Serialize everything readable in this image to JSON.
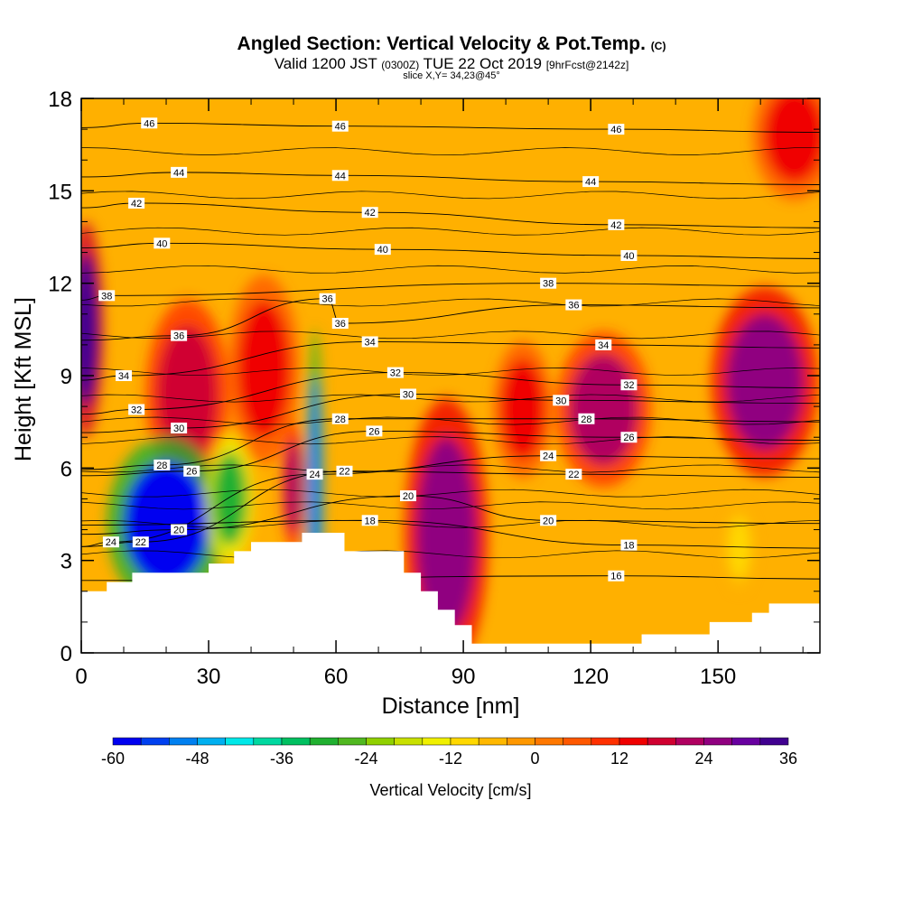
{
  "header": {
    "title": "Angled Section: Vertical Velocity & Pot.Temp.",
    "title_unit": "(C)",
    "valid_prefix": "Valid 1200 JST",
    "valid_utc": "(0300Z)",
    "valid_date": "TUE 22 Oct 2019",
    "forecast": "[9hrFcst@2142z]",
    "slice": "slice X,Y= 34,23@45°"
  },
  "chart_data": {
    "type": "heatmap",
    "xlabel": "Distance [nm]",
    "ylabel": "Height [Kft MSL]",
    "xlim": [
      0,
      174
    ],
    "ylim": [
      0,
      18
    ],
    "x_ticks": [
      0,
      30,
      60,
      90,
      120,
      150
    ],
    "y_ticks": [
      0,
      3,
      6,
      9,
      12,
      15,
      18
    ],
    "colorbar": {
      "label": "Vertical Velocity [cm/s]",
      "ticks": [
        -60,
        -48,
        -36,
        -24,
        -12,
        0,
        12,
        24,
        36
      ],
      "range": [
        -60,
        36
      ],
      "step": 4,
      "colors": [
        "#0000f0",
        "#0040f0",
        "#0080f0",
        "#00b0f0",
        "#00e8e8",
        "#00d8a0",
        "#00c060",
        "#20b030",
        "#50b820",
        "#90d000",
        "#c8e000",
        "#f0f000",
        "#ffd800",
        "#ffb800",
        "#ff9800",
        "#ff7800",
        "#ff5800",
        "#ff3000",
        "#f00000",
        "#d00030",
        "#b00060",
        "#900080",
        "#6800a0",
        "#400090"
      ]
    },
    "terrain_profile": [
      [
        0,
        2
      ],
      [
        6,
        2.3
      ],
      [
        12,
        2.6
      ],
      [
        24,
        2.6
      ],
      [
        30,
        2.9
      ],
      [
        36,
        3.3
      ],
      [
        40,
        3.6
      ],
      [
        48,
        3.6
      ],
      [
        52,
        3.9
      ],
      [
        56,
        3.9
      ],
      [
        62,
        3.3
      ],
      [
        70,
        3.3
      ],
      [
        76,
        2.6
      ],
      [
        80,
        2.0
      ],
      [
        84,
        1.4
      ],
      [
        88,
        0.9
      ],
      [
        92,
        0.3
      ],
      [
        104,
        0.3
      ],
      [
        110,
        0.3
      ],
      [
        116,
        0.3
      ],
      [
        124,
        0.3
      ],
      [
        132,
        0.6
      ],
      [
        142,
        0.6
      ],
      [
        148,
        1.0
      ],
      [
        154,
        1.0
      ],
      [
        158,
        1.3
      ],
      [
        162,
        1.6
      ],
      [
        174,
        1.6
      ]
    ],
    "theta_isentropes": {
      "units": "C",
      "levels": [
        16,
        18,
        20,
        22,
        24,
        26,
        28,
        30,
        32,
        34,
        36,
        38,
        40,
        42,
        44,
        46
      ],
      "labels": [
        {
          "value": "46",
          "x": 16,
          "y": 17.2
        },
        {
          "value": "46",
          "x": 61,
          "y": 17.1
        },
        {
          "value": "46",
          "x": 126,
          "y": 17.0
        },
        {
          "value": "44",
          "x": 23,
          "y": 15.6
        },
        {
          "value": "44",
          "x": 61,
          "y": 15.5
        },
        {
          "value": "44",
          "x": 120,
          "y": 15.3
        },
        {
          "value": "42",
          "x": 13,
          "y": 14.6
        },
        {
          "value": "42",
          "x": 68,
          "y": 14.3
        },
        {
          "value": "42",
          "x": 126,
          "y": 13.9
        },
        {
          "value": "40",
          "x": 19,
          "y": 13.3
        },
        {
          "value": "40",
          "x": 71,
          "y": 13.1
        },
        {
          "value": "40",
          "x": 129,
          "y": 12.9
        },
        {
          "value": "38",
          "x": 6,
          "y": 11.6
        },
        {
          "value": "38",
          "x": 110,
          "y": 12.0
        },
        {
          "value": "36",
          "x": 58,
          "y": 11.5
        },
        {
          "value": "36",
          "x": 116,
          "y": 11.3
        },
        {
          "value": "36",
          "x": 61,
          "y": 10.7
        },
        {
          "value": "36",
          "x": 23,
          "y": 10.3
        },
        {
          "value": "34",
          "x": 68,
          "y": 10.1
        },
        {
          "value": "34",
          "x": 123,
          "y": 10.0
        },
        {
          "value": "34",
          "x": 10,
          "y": 9.0
        },
        {
          "value": "32",
          "x": 74,
          "y": 9.1
        },
        {
          "value": "32",
          "x": 129,
          "y": 8.7
        },
        {
          "value": "32",
          "x": 13,
          "y": 7.9
        },
        {
          "value": "30",
          "x": 77,
          "y": 8.4
        },
        {
          "value": "30",
          "x": 113,
          "y": 8.2
        },
        {
          "value": "30",
          "x": 23,
          "y": 7.3
        },
        {
          "value": "28",
          "x": 61,
          "y": 7.6
        },
        {
          "value": "28",
          "x": 119,
          "y": 7.6
        },
        {
          "value": "28",
          "x": 19,
          "y": 6.1
        },
        {
          "value": "26",
          "x": 69,
          "y": 7.2
        },
        {
          "value": "26",
          "x": 129,
          "y": 7.0
        },
        {
          "value": "26",
          "x": 26,
          "y": 5.9
        },
        {
          "value": "24",
          "x": 110,
          "y": 6.4
        },
        {
          "value": "24",
          "x": 55,
          "y": 5.8
        },
        {
          "value": "24",
          "x": 7,
          "y": 3.6
        },
        {
          "value": "22",
          "x": 62,
          "y": 5.9
        },
        {
          "value": "22",
          "x": 116,
          "y": 5.8
        },
        {
          "value": "22",
          "x": 14,
          "y": 3.6
        },
        {
          "value": "20",
          "x": 77,
          "y": 5.1
        },
        {
          "value": "20",
          "x": 110,
          "y": 4.3
        },
        {
          "value": "20",
          "x": 23,
          "y": 4.0
        },
        {
          "value": "18",
          "x": 68,
          "y": 4.3
        },
        {
          "value": "18",
          "x": 129,
          "y": 3.5
        },
        {
          "value": "16",
          "x": 126,
          "y": 2.5
        }
      ]
    },
    "velocity_features": [
      {
        "kind": "updraft",
        "x": 1,
        "y": 10.5,
        "rx": 3,
        "ry": 2.5,
        "value": 32
      },
      {
        "kind": "updraft",
        "x": 25,
        "y": 8.4,
        "rx": 7,
        "ry": 2.2,
        "value": 16
      },
      {
        "kind": "updraft",
        "x": 43,
        "y": 9.2,
        "rx": 6,
        "ry": 2.2,
        "value": 14
      },
      {
        "kind": "updraft",
        "x": 50,
        "y": 5.4,
        "rx": 2,
        "ry": 1.5,
        "value": 20
      },
      {
        "kind": "updraft",
        "x": 86,
        "y": 3.8,
        "rx": 7,
        "ry": 3.2,
        "value": 26
      },
      {
        "kind": "updraft",
        "x": 104,
        "y": 7.9,
        "rx": 5,
        "ry": 1.6,
        "value": 14
      },
      {
        "kind": "updraft",
        "x": 123,
        "y": 7.9,
        "rx": 8,
        "ry": 1.8,
        "value": 22
      },
      {
        "kind": "updraft",
        "x": 161,
        "y": 8.8,
        "rx": 9,
        "ry": 2.2,
        "value": 26
      },
      {
        "kind": "updraft",
        "x": 168,
        "y": 16.8,
        "rx": 7,
        "ry": 1.5,
        "value": 14
      },
      {
        "kind": "downdraft",
        "x": 20,
        "y": 4.2,
        "rx": 10,
        "ry": 2.0,
        "value": -60
      },
      {
        "kind": "downdraft",
        "x": 35,
        "y": 5.0,
        "rx": 4,
        "ry": 1.5,
        "value": -30
      },
      {
        "kind": "downdraft",
        "x": 55,
        "y": 5.2,
        "rx": 1.6,
        "ry": 3.8,
        "value": -52
      },
      {
        "kind": "downdraft",
        "x": 155,
        "y": 3.4,
        "rx": 2.5,
        "ry": 1.0,
        "value": -12
      }
    ]
  }
}
